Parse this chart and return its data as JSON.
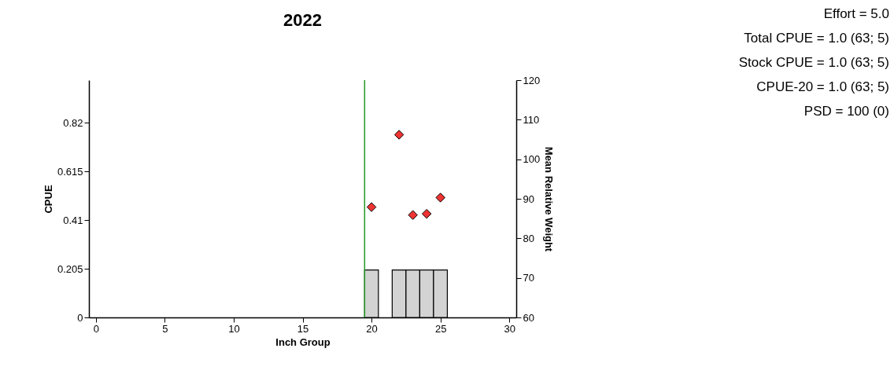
{
  "chart_data": {
    "type": "bar",
    "title": "2022",
    "xlabel": "Inch Group",
    "ylabel": "CPUE",
    "y2label": "Mean Relative Weight",
    "xlim": [
      -0.5,
      30.5
    ],
    "xticks": [
      0,
      5,
      10,
      15,
      20,
      25,
      30
    ],
    "ylim": [
      0,
      1
    ],
    "yticks": [
      0,
      0.205,
      0.41,
      0.615,
      0.82
    ],
    "y2lim": [
      60,
      120
    ],
    "y2ticks": [
      60,
      70,
      80,
      90,
      100,
      110,
      120
    ],
    "grid": false,
    "series": [
      {
        "color": "#d3d3d3",
        "x": [
          20,
          22,
          23,
          24,
          25
        ],
        "values": [
          0.2,
          0.2,
          0.2,
          0.2,
          0.2
        ]
      },
      {
        "type": "scatter",
        "axis": "y2",
        "marker": "diamond",
        "color": "#ee3333",
        "x": [
          20,
          22,
          23,
          24,
          25
        ],
        "values": [
          87.9,
          106.2,
          85.9,
          86.2,
          90.3
        ]
      }
    ],
    "ref_lines": [
      {
        "axis": "x",
        "value": 19.5,
        "color": "#229922"
      }
    ],
    "annotations": [
      "Effort = 5.0",
      "Total CPUE = 1.0 (63; 5)",
      "Stock CPUE = 1.0 (63; 5)",
      "CPUE-20 = 1.0 (63; 5)",
      "PSD = 100 (0)"
    ]
  }
}
